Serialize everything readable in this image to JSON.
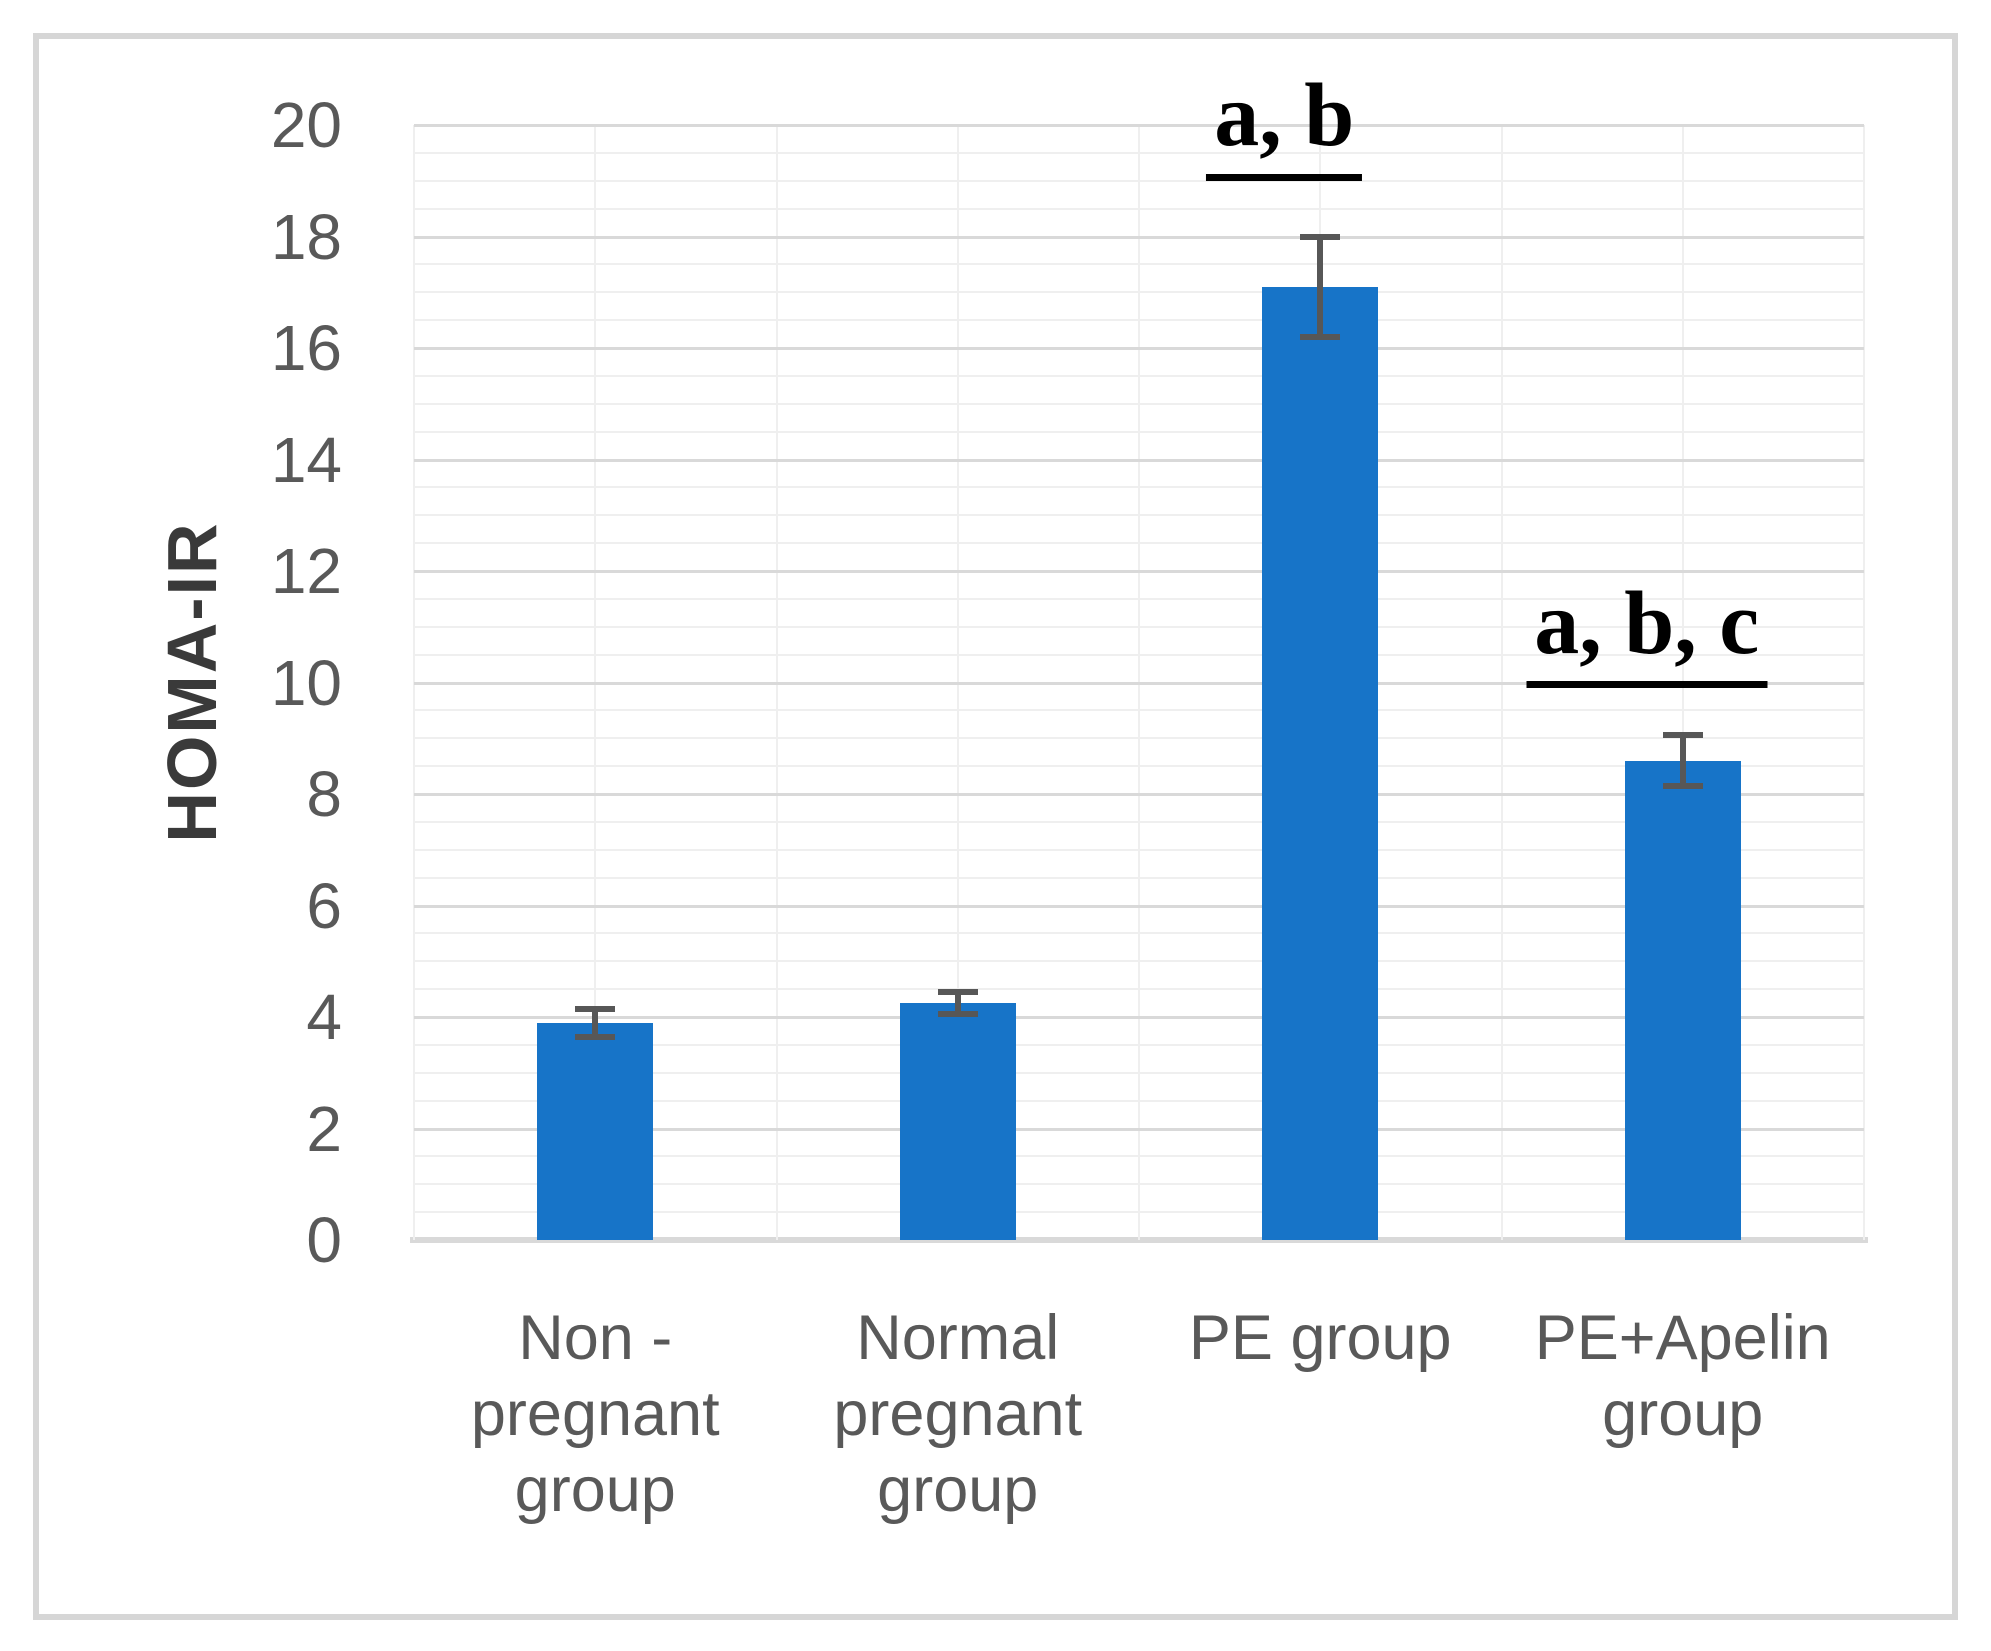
{
  "chart_data": {
    "type": "bar",
    "title": "",
    "xlabel": "",
    "ylabel": "HOMA-IR",
    "ylim": [
      0,
      20
    ],
    "y_major_step": 2,
    "y_minor_step": 0.5,
    "grid": true,
    "legend": false,
    "y_tick_labels": [
      "0",
      "2",
      "4",
      "6",
      "8",
      "10",
      "12",
      "14",
      "16",
      "18",
      "20"
    ],
    "categories": [
      "Non -\npregnant\ngroup",
      "Normal\npregnant\ngroup",
      "PE group",
      "PE+Apelin\ngroup"
    ],
    "values": [
      3.9,
      4.25,
      17.1,
      8.6
    ],
    "errors": [
      0.25,
      0.2,
      0.9,
      0.45
    ],
    "annotations": [
      {
        "text": "a, b",
        "category_index": 2,
        "y": 19.0
      },
      {
        "text": "a, b, c",
        "category_index": 3,
        "y": 9.9
      }
    ],
    "colors": {
      "bar": "#1774c8",
      "error_bar": "#575757",
      "axis_text": "#595959",
      "axis_title": "#3a3a3a",
      "annotation": "#000000",
      "gridline_major": "#d9d9d9",
      "gridline_minor": "#efefef",
      "axis_line": "#d9d9d9",
      "frame_border": "#d6d6d6"
    }
  }
}
